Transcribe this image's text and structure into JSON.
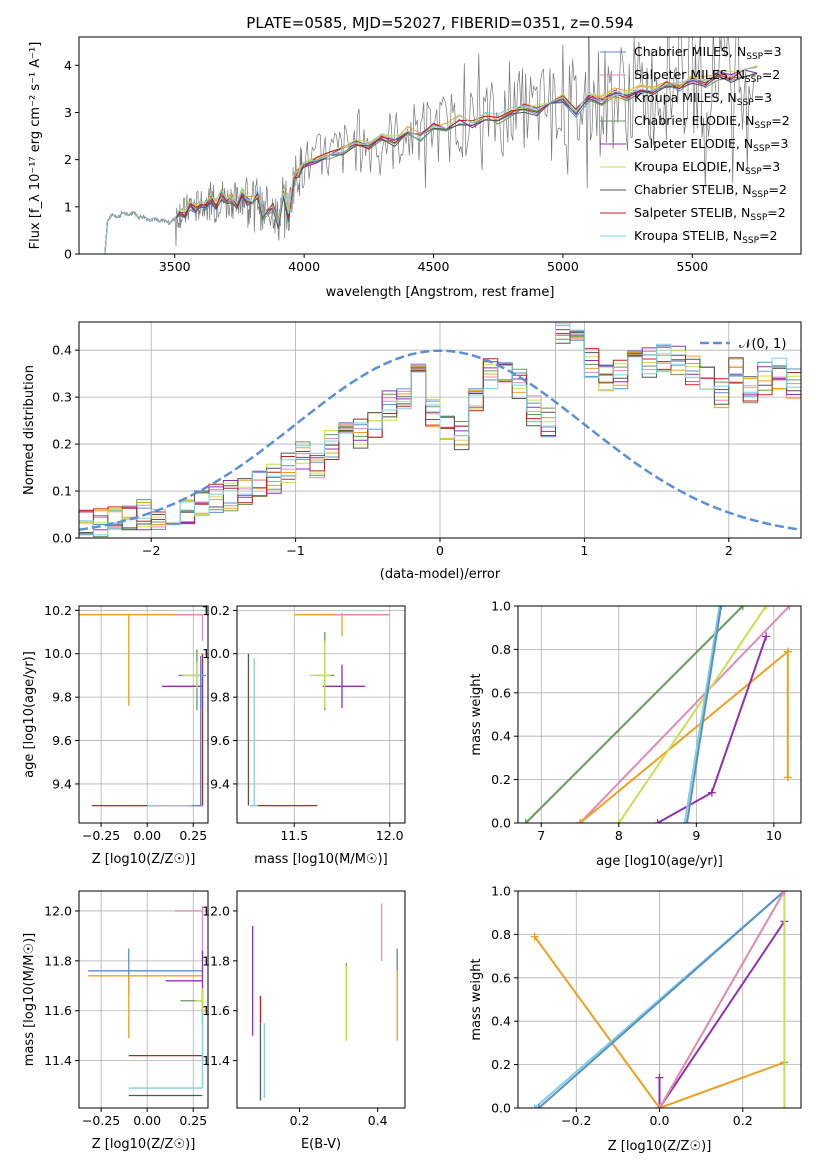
{
  "figure_title": "PLATE=0585, MJD=52027, FIBERID=0351, z=0.594",
  "models": [
    {
      "name": "Chabrier MILES",
      "nssp": "3",
      "color": "#5b8fc7"
    },
    {
      "name": "Salpeter MILES",
      "nssp": "2",
      "color": "#e48ab8"
    },
    {
      "name": "Kroupa MILES",
      "nssp": "3",
      "color": "#f0a020"
    },
    {
      "name": "Chabrier ELODIE",
      "nssp": "2",
      "color": "#6a9a5a"
    },
    {
      "name": "Salpeter ELODIE",
      "nssp": "3",
      "color": "#9030b0"
    },
    {
      "name": "Kroupa ELODIE",
      "nssp": "3",
      "color": "#c8e050"
    },
    {
      "name": "Chabrier STELIB",
      "nssp": "2",
      "color": "#555555"
    },
    {
      "name": "Salpeter STELIB",
      "nssp": "2",
      "color": "#c02020"
    },
    {
      "name": "Kroupa STELIB",
      "nssp": "2",
      "color": "#80d0e0"
    }
  ],
  "chart_data": [
    {
      "id": "spectrum",
      "type": "line",
      "xlabel": "wavelength [Angstrom, rest frame]",
      "ylabel": "Flux [f_λ 10⁻¹⁷ erg cm⁻² s⁻¹ A⁻¹]",
      "xlim": [
        3130,
        5920
      ],
      "ylim": [
        0,
        4.6
      ],
      "xticks": [
        3500,
        4000,
        4500,
        5000,
        5500
      ],
      "yticks": [
        0,
        1,
        2,
        3,
        4
      ],
      "grid": false,
      "legend": "right",
      "model_x": [
        3230,
        3240,
        3260,
        3280,
        3300,
        3320,
        3340,
        3360,
        3380,
        3400,
        3420,
        3440,
        3460,
        3480,
        3500,
        3520,
        3540,
        3560,
        3580,
        3600,
        3620,
        3640,
        3660,
        3680,
        3700,
        3720,
        3740,
        3760,
        3780,
        3800,
        3820,
        3840,
        3860,
        3880,
        3900,
        3920,
        3940,
        3960,
        3980,
        4000,
        4050,
        4100,
        4150,
        4200,
        4250,
        4300,
        4350,
        4400,
        4450,
        4500,
        4550,
        4600,
        4650,
        4700,
        4750,
        4800,
        4850,
        4900,
        4950,
        5000,
        5050,
        5100,
        5150,
        5200,
        5250,
        5300,
        5350,
        5400,
        5450,
        5500,
        5550,
        5600,
        5650,
        5700,
        5750
      ],
      "model_y": [
        0.0,
        0.7,
        0.85,
        0.78,
        0.88,
        0.82,
        0.9,
        0.78,
        0.8,
        0.72,
        0.76,
        0.68,
        0.72,
        0.66,
        0.75,
        0.9,
        0.85,
        1.05,
        0.95,
        1.1,
        1.0,
        1.15,
        1.05,
        1.25,
        1.1,
        1.2,
        1.05,
        1.3,
        1.15,
        1.1,
        1.25,
        0.8,
        0.9,
        1.0,
        0.65,
        1.3,
        0.8,
        1.6,
        1.75,
        1.9,
        2.0,
        2.1,
        2.2,
        2.35,
        2.3,
        2.45,
        2.4,
        2.6,
        2.5,
        2.7,
        2.65,
        2.85,
        2.75,
        2.9,
        2.85,
        3.0,
        3.1,
        3.05,
        3.2,
        3.3,
        3.0,
        3.3,
        3.25,
        3.4,
        3.35,
        3.5,
        3.45,
        3.6,
        3.55,
        3.7,
        3.65,
        3.8,
        3.75,
        3.85,
        3.9
      ]
    },
    {
      "id": "residuals",
      "type": "line",
      "xlabel": "(data-model)/error",
      "ylabel": "Normed distribution",
      "xlim": [
        -2.5,
        2.5
      ],
      "ylim": [
        0,
        0.46
      ],
      "xticks": [
        -2,
        -1,
        0,
        1,
        2
      ],
      "yticks": [
        0.0,
        0.1,
        0.2,
        0.3,
        0.4
      ],
      "grid": true,
      "legend": "top-right",
      "normal_label": "𝒩(0, 1)",
      "hist_bin_width": 0.1,
      "hist_base": [
        0.03,
        0.03,
        0.04,
        0.04,
        0.05,
        0.05,
        0.06,
        0.06,
        0.07,
        0.08,
        0.09,
        0.1,
        0.12,
        0.13,
        0.15,
        0.17,
        0.16,
        0.2,
        0.24,
        0.22,
        0.24,
        0.28,
        0.3,
        0.35,
        0.27,
        0.24,
        0.22,
        0.3,
        0.35,
        0.36,
        0.33,
        0.27,
        0.25,
        0.44,
        0.42,
        0.37,
        0.34,
        0.35,
        0.4,
        0.37,
        0.39,
        0.38,
        0.36,
        0.33,
        0.31,
        0.36,
        0.32,
        0.34,
        0.35,
        0.33,
        0.35,
        0.31,
        0.34,
        0.33,
        0.3,
        0.29,
        0.27,
        0.24,
        0.22,
        0.21,
        0.18,
        0.19,
        0.16,
        0.14,
        0.13,
        0.11,
        0.1,
        0.09,
        0.08,
        0.07,
        0.06,
        0.06,
        0.05,
        0.05,
        0.05,
        0.04,
        0.04,
        0.04,
        0.04,
        0.03
      ]
    },
    {
      "id": "age-Z",
      "type": "scatter",
      "xlabel": "Z [log10(Z/Z☉)]",
      "ylabel": "age [log10(age/yr)]",
      "xlim": [
        -0.37,
        0.33
      ],
      "ylim": [
        9.22,
        10.22
      ],
      "xticks": [
        -0.25,
        0.0,
        0.25
      ],
      "yticks": [
        9.4,
        9.6,
        9.8,
        10.0,
        10.2
      ],
      "grid": true,
      "points": [
        {
          "m": 7,
          "x": 0.3,
          "y": 9.3,
          "xerr": [
            0.6,
            0
          ],
          "yerr": [
            0,
            0.7
          ]
        },
        {
          "m": 2,
          "x": -0.1,
          "y": 10.18,
          "xerr": [
            0.3,
            0.4
          ],
          "yerr": [
            0.42,
            0
          ]
        },
        {
          "m": 1,
          "x": 0.3,
          "y": 10.18,
          "xerr": [
            0.15,
            0
          ],
          "yerr": [
            0.12,
            0
          ]
        },
        {
          "m": 4,
          "x": 0.3,
          "y": 9.85,
          "xerr": [
            0.22,
            0
          ],
          "yerr": [
            0.1,
            0.1
          ]
        },
        {
          "m": 3,
          "x": 0.27,
          "y": 9.9,
          "xerr": [
            0.1,
            0.05
          ],
          "yerr": [
            0.16,
            0.12
          ]
        },
        {
          "m": 5,
          "x": 0.27,
          "y": 9.9,
          "xerr": [
            0.08,
            0.03
          ],
          "yerr": [
            0.06,
            0.06
          ]
        },
        {
          "m": 8,
          "x": 0.28,
          "y": 9.3,
          "xerr": [
            0.28,
            0
          ],
          "yerr": [
            0,
            0
          ]
        },
        {
          "m": 0,
          "x": 0.29,
          "y": 9.3,
          "xerr": [
            0.05,
            0.01
          ],
          "yerr": [
            0,
            0.69
          ]
        }
      ]
    },
    {
      "id": "age-mass",
      "type": "scatter",
      "xlabel": "mass [log10(M/M☉)]",
      "ylabel": "",
      "xlim": [
        11.2,
        12.08
      ],
      "ylim": [
        9.22,
        10.22
      ],
      "xticks": [
        11.5,
        12.0
      ],
      "yticks": [
        9.4,
        9.6,
        9.8,
        10.0,
        10.2
      ],
      "grid": true,
      "points": [
        {
          "m": 7,
          "x": 11.42,
          "y": 9.3,
          "xerr": [
            0.15,
            0.2
          ],
          "yerr": [
            0,
            0
          ]
        },
        {
          "m": 2,
          "x": 11.75,
          "y": 10.18,
          "xerr": [
            0.25,
            0.25
          ],
          "yerr": [
            0.1,
            0
          ]
        },
        {
          "m": 1,
          "x": 11.75,
          "y": 10.18,
          "xerr": [
            0.05,
            0.25
          ],
          "yerr": [
            0,
            0.01
          ]
        },
        {
          "m": 4,
          "x": 11.75,
          "y": 9.85,
          "xerr": [
            0.1,
            0.12
          ],
          "yerr": [
            0.1,
            0.1
          ]
        },
        {
          "m": 3,
          "x": 11.66,
          "y": 9.9,
          "xerr": [
            0.05,
            0.05
          ],
          "yerr": [
            0.16,
            0.2
          ]
        },
        {
          "m": 5,
          "x": 11.66,
          "y": 9.9,
          "xerr": [
            0.08,
            0.03
          ],
          "yerr": [
            0.15,
            0.16
          ]
        },
        {
          "m": 6,
          "x": 11.26,
          "y": 9.3,
          "xerr": [
            0,
            0
          ],
          "yerr": [
            0,
            0.7
          ]
        },
        {
          "m": 8,
          "x": 11.29,
          "y": 9.3,
          "xerr": [
            0.02,
            0.02
          ],
          "yerr": [
            0,
            0.68
          ]
        }
      ]
    },
    {
      "id": "weight-age",
      "type": "line",
      "xlabel": "age [log10(age/yr)]",
      "ylabel": "mass weight",
      "xlim": [
        6.7,
        10.35
      ],
      "ylim": [
        0,
        1
      ],
      "xticks": [
        7,
        8,
        9,
        10
      ],
      "yticks": [
        0.0,
        0.2,
        0.4,
        0.6,
        0.8,
        1.0
      ],
      "grid": true,
      "series": [
        {
          "m": 3,
          "x": [
            6.8,
            9.6
          ],
          "y": [
            0,
            1
          ]
        },
        {
          "m": 1,
          "x": [
            7.5,
            10.2
          ],
          "y": [
            0,
            1
          ]
        },
        {
          "m": 2,
          "x": [
            7.5,
            10.18,
            10.18
          ],
          "y": [
            0,
            0.79,
            0.21
          ]
        },
        {
          "m": 5,
          "x": [
            8.0,
            9.9
          ],
          "y": [
            0,
            1
          ]
        },
        {
          "m": 4,
          "x": [
            8.5,
            9.2,
            9.9
          ],
          "y": [
            0,
            0.14,
            0.86
          ]
        },
        {
          "m": 8,
          "x": [
            8.85,
            9.3
          ],
          "y": [
            0,
            1
          ]
        },
        {
          "m": 0,
          "x": [
            8.88,
            9.32
          ],
          "y": [
            0,
            1
          ]
        }
      ]
    },
    {
      "id": "mass-Z",
      "type": "scatter",
      "xlabel": "Z [log10(Z/Z☉)]",
      "ylabel": "mass [log10(M/M☉)]",
      "xlim": [
        -0.37,
        0.33
      ],
      "ylim": [
        11.21,
        12.08
      ],
      "xticks": [
        -0.25,
        0.0,
        0.25
      ],
      "yticks": [
        11.4,
        11.6,
        11.8,
        12.0
      ],
      "grid": true,
      "points": [
        {
          "m": 1,
          "x": 0.3,
          "y": 12.0,
          "xerr": [
            0.15,
            0
          ],
          "yerr": [
            0.2,
            0.02
          ]
        },
        {
          "m": 0,
          "x": -0.1,
          "y": 11.76,
          "xerr": [
            0.22,
            0.4
          ],
          "yerr": [
            0.09,
            0.09
          ]
        },
        {
          "m": 2,
          "x": -0.1,
          "y": 11.74,
          "xerr": [
            0.22,
            0.4
          ],
          "yerr": [
            0.25,
            0
          ]
        },
        {
          "m": 4,
          "x": 0.3,
          "y": 11.72,
          "xerr": [
            0.2,
            0
          ],
          "yerr": [
            0.17,
            0.12
          ]
        },
        {
          "m": 3,
          "x": 0.3,
          "y": 11.64,
          "xerr": [
            0.12,
            0
          ],
          "yerr": [
            0.05,
            0.05
          ]
        },
        {
          "m": 5,
          "x": 0.3,
          "y": 11.64,
          "xerr": [
            0.04,
            0
          ],
          "yerr": [
            0.05,
            0.05
          ]
        },
        {
          "m": 7,
          "x": 0.3,
          "y": 11.42,
          "xerr": [
            0.4,
            0
          ],
          "yerr": [
            0,
            0
          ]
        },
        {
          "m": 8,
          "x": 0.3,
          "y": 11.29,
          "xerr": [
            0.4,
            0
          ],
          "yerr": [
            0,
            0.3
          ]
        },
        {
          "m": 6,
          "x": 0.3,
          "y": 11.26,
          "xerr": [
            0.4,
            0
          ],
          "yerr": [
            0,
            0
          ]
        }
      ]
    },
    {
      "id": "mass-EBV",
      "type": "scatter",
      "xlabel": "E(B-V)",
      "ylabel": "",
      "xlim": [
        0.04,
        0.47
      ],
      "ylim": [
        11.21,
        12.08
      ],
      "xticks": [
        0.2,
        0.4
      ],
      "yticks": [
        11.4,
        11.6,
        11.8,
        12.0
      ],
      "grid": false,
      "points": [
        {
          "m": 4,
          "x": 0.08,
          "y": 11.72,
          "xerr": [
            0,
            0
          ],
          "yerr": [
            0.22,
            0.22
          ]
        },
        {
          "m": 7,
          "x": 0.1,
          "y": 11.58,
          "xerr": [
            0,
            0
          ],
          "yerr": [
            0.03,
            0.08
          ]
        },
        {
          "m": 6,
          "x": 0.1,
          "y": 11.4,
          "xerr": [
            0,
            0
          ],
          "yerr": [
            0.16,
            0.15
          ]
        },
        {
          "m": 8,
          "x": 0.11,
          "y": 11.4,
          "xerr": [
            0,
            0
          ],
          "yerr": [
            0.15,
            0.15
          ]
        },
        {
          "m": 3,
          "x": 0.32,
          "y": 11.64,
          "xerr": [
            0,
            0
          ],
          "yerr": [
            0.16,
            0.15
          ]
        },
        {
          "m": 5,
          "x": 0.32,
          "y": 11.64,
          "xerr": [
            0,
            0
          ],
          "yerr": [
            0.16,
            0.14
          ]
        },
        {
          "m": 1,
          "x": 0.41,
          "y": 11.92,
          "xerr": [
            0,
            0
          ],
          "yerr": [
            0.12,
            0.11
          ]
        },
        {
          "m": 2,
          "x": 0.45,
          "y": 11.66,
          "xerr": [
            0,
            0
          ],
          "yerr": [
            0.18,
            0.18
          ]
        },
        {
          "m": 0,
          "x": 0.45,
          "y": 11.8,
          "xerr": [
            0,
            0
          ],
          "yerr": [
            0.04,
            0.05
          ]
        }
      ]
    },
    {
      "id": "weight-Z",
      "type": "line",
      "xlabel": "Z [log10(Z/Z☉)]",
      "ylabel": "mass weight",
      "xlim": [
        -0.34,
        0.34
      ],
      "ylim": [
        0,
        1
      ],
      "xticks": [
        -0.2,
        0.0,
        0.2
      ],
      "yticks": [
        0.0,
        0.2,
        0.4,
        0.6,
        0.8,
        1.0
      ],
      "grid": true,
      "series": [
        {
          "m": 2,
          "x": [
            -0.3,
            0.0,
            0.3,
            0.3
          ],
          "y": [
            0.79,
            0.0,
            0.21,
            0.21
          ]
        },
        {
          "m": 8,
          "x": [
            -0.3,
            0.3
          ],
          "y": [
            0,
            1
          ]
        },
        {
          "m": 0,
          "x": [
            -0.29,
            0.3
          ],
          "y": [
            0,
            1
          ]
        },
        {
          "m": 4,
          "x": [
            0.0,
            0.0,
            0.3
          ],
          "y": [
            0.14,
            0,
            0.86
          ]
        },
        {
          "m": 5,
          "x": [
            0.0,
            0.3,
            0.3
          ],
          "y": [
            0,
            1,
            0
          ]
        },
        {
          "m": 1,
          "x": [
            0.0,
            0.3
          ],
          "y": [
            0,
            1
          ]
        }
      ]
    }
  ]
}
